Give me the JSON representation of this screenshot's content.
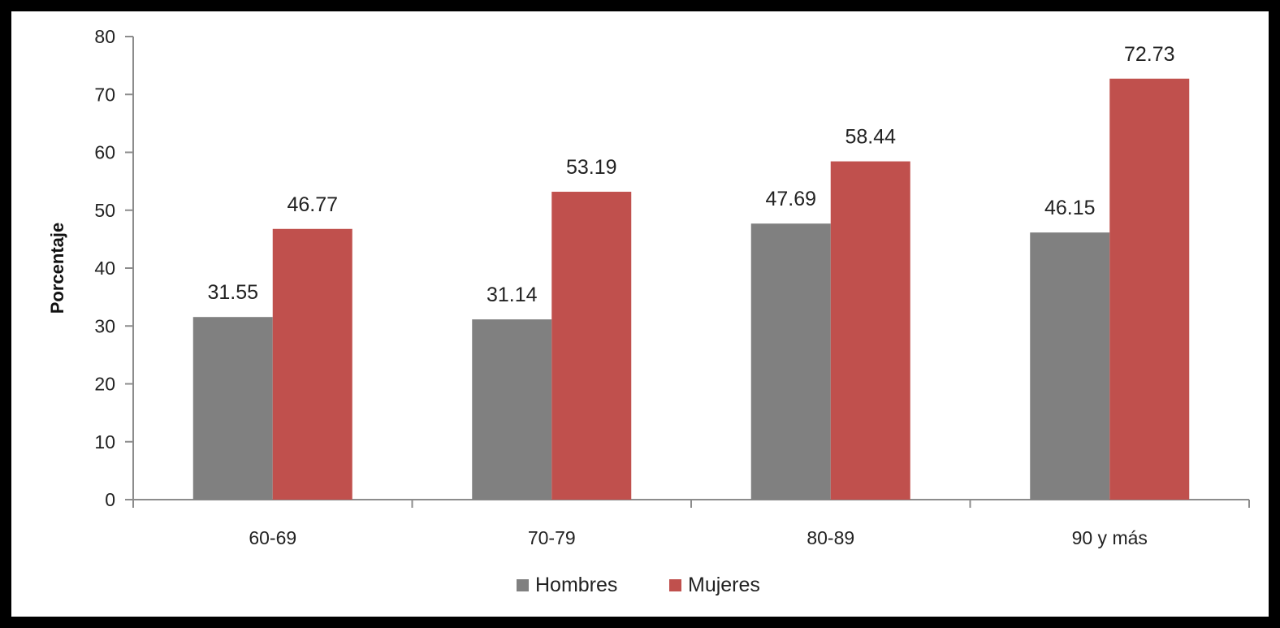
{
  "chart_data": {
    "type": "bar",
    "title": "",
    "xlabel": "",
    "ylabel": "Porcentaje",
    "ylim": [
      0,
      80
    ],
    "yticks": [
      0,
      10,
      20,
      30,
      40,
      50,
      60,
      70,
      80
    ],
    "grid": false,
    "legend_position": "bottom",
    "categories": [
      "60-69",
      "70-79",
      "80-89",
      "90 y más"
    ],
    "series": [
      {
        "name": "Hombres",
        "color": "#808080",
        "values": [
          31.55,
          31.14,
          47.69,
          46.15
        ],
        "labels": [
          "31.55",
          "31.14",
          "47.69",
          "46.15"
        ]
      },
      {
        "name": "Mujeres",
        "color": "#c0504d",
        "values": [
          46.77,
          53.19,
          58.44,
          72.73
        ],
        "labels": [
          "46.77",
          "53.19",
          "58.44",
          "72.73"
        ]
      }
    ]
  }
}
